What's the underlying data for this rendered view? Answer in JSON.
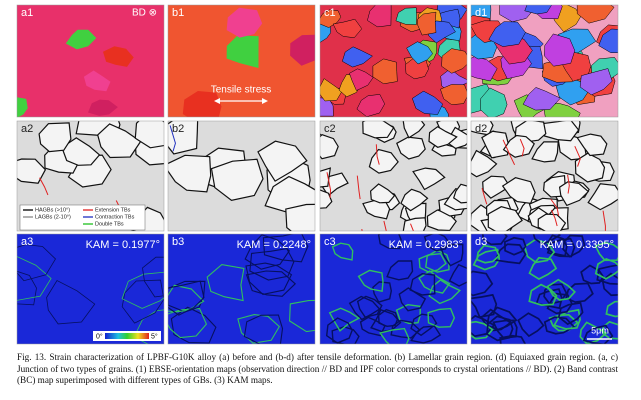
{
  "figure": {
    "panels": [
      {
        "label": "a1"
      },
      {
        "label": "b1"
      },
      {
        "label": "c1"
      },
      {
        "label": "d1"
      },
      {
        "label": "a2"
      },
      {
        "label": "b2"
      },
      {
        "label": "c2"
      },
      {
        "label": "d2"
      },
      {
        "label": "a3"
      },
      {
        "label": "b3"
      },
      {
        "label": "c3"
      },
      {
        "label": "d3"
      }
    ],
    "build_direction": "BD ⊗",
    "tensile_label": "Tensile stress",
    "legend": [
      {
        "name": "HAGBs (>10°)",
        "color": "#000000"
      },
      {
        "name": "LAGBs (2-10°)",
        "color": "#888888"
      },
      {
        "name": "Extension TBs",
        "color": "#e02020"
      },
      {
        "name": "Contraction TBs",
        "color": "#2030c0"
      },
      {
        "name": "Double TBs",
        "color": "#20c020"
      }
    ],
    "kam": [
      "KAM = 0.1977°",
      "KAM = 0.2248°",
      "KAM = 0.2983°",
      "KAM = 0.3395°"
    ],
    "colorbar": {
      "min": "0°",
      "max": "5°"
    },
    "scale_bar": "5μm"
  },
  "caption": "Fig. 13. Strain characterization of LPBF-G10K alloy (a) before and (b-d) after tensile deformation. (b) Lamellar grain region. (d) Equiaxed grain region. (a, c) Junction of two types of grains. (1) EBSE-orientation maps (observation direction // BD and IPF color corresponds to crystal orientations // BD). (2) Band contrast (BC) map superimposed with different types of GBs. (3) KAM maps."
}
